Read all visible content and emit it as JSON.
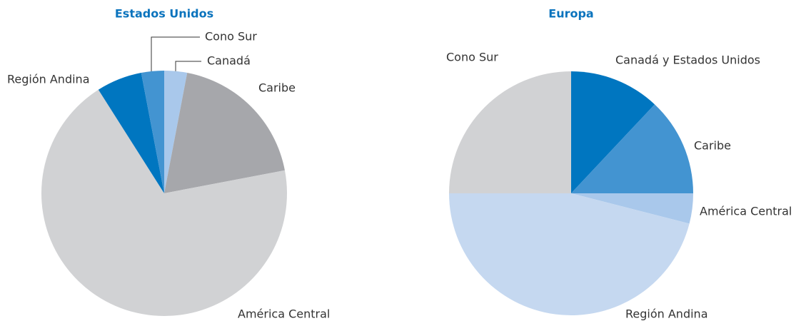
{
  "chart_data": [
    {
      "type": "pie",
      "title": "Estados Unidos",
      "categories": [
        "Canadá",
        "Caribe",
        "América Central",
        "Región Andina",
        "Cono Sur"
      ],
      "values": [
        3,
        19,
        69,
        6,
        3
      ],
      "colors": [
        "#a9c8eb",
        "#a6a7ab",
        "#d1d2d4",
        "#0076c0",
        "#4394d1"
      ]
    },
    {
      "type": "pie",
      "title": "Europa",
      "categories": [
        "Canadá y Estados Unidos",
        "Caribe",
        "América Central",
        "Región Andina",
        "Cono Sur"
      ],
      "values": [
        12,
        13,
        4,
        46,
        25
      ],
      "colors": [
        "#0076c0",
        "#4394d1",
        "#a9c8eb",
        "#c5d8f0",
        "#d1d2d4"
      ]
    }
  ]
}
